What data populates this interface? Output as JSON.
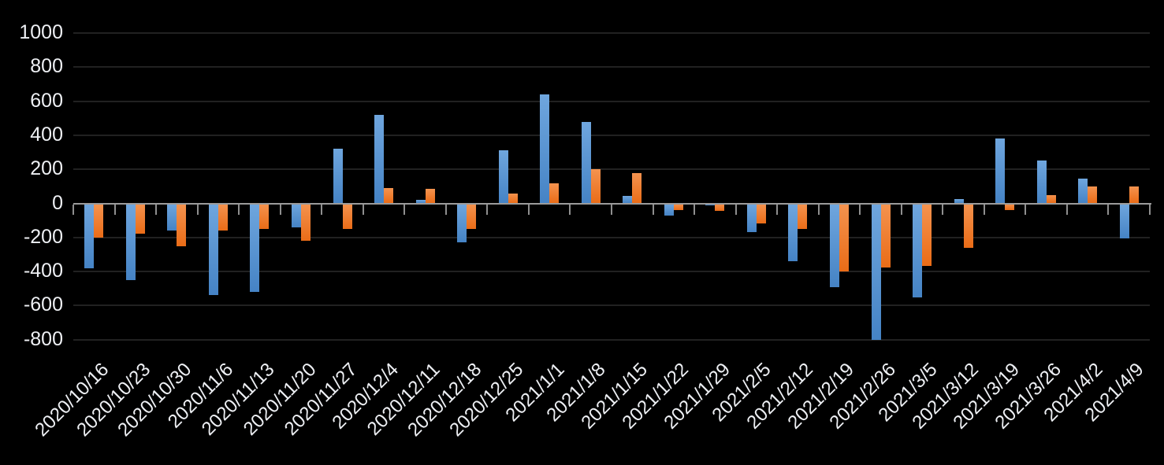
{
  "chart_data": {
    "type": "bar",
    "title": "",
    "legend": "none",
    "grid": true,
    "background": "#000000",
    "categories": [
      "2020/10/16",
      "2020/10/23",
      "2020/10/30",
      "2020/11/6",
      "2020/11/13",
      "2020/11/20",
      "2020/11/27",
      "2020/12/4",
      "2020/12/11",
      "2020/12/18",
      "2020/12/25",
      "2021/1/1",
      "2021/1/8",
      "2021/1/15",
      "2021/1/22",
      "2021/1/29",
      "2021/2/5",
      "2021/2/12",
      "2021/2/19",
      "2021/2/26",
      "2021/3/5",
      "2021/3/12",
      "2021/3/19",
      "2021/3/26",
      "2021/4/2",
      "2021/4/9"
    ],
    "series": [
      {
        "name": "blue",
        "color": "#5b9bd5",
        "values": [
          -380,
          -450,
          -160,
          -540,
          -520,
          -140,
          320,
          520,
          20,
          -230,
          310,
          640,
          480,
          45,
          -70,
          -10,
          -170,
          -340,
          -490,
          -800,
          -550,
          25,
          380,
          250,
          145,
          -205
        ]
      },
      {
        "name": "orange",
        "color": "#ed7d31",
        "values": [
          -200,
          -180,
          -250,
          -160,
          -150,
          -220,
          -150,
          90,
          85,
          -150,
          60,
          120,
          200,
          180,
          -40,
          -45,
          -120,
          -150,
          -400,
          -375,
          -365,
          -260,
          -40,
          50,
          100,
          100
        ]
      }
    ],
    "y_axis": {
      "min": -800,
      "max": 1000,
      "step": 200,
      "tick_labels": [
        "1000",
        "800",
        "600",
        "400",
        "200",
        "0",
        "-200",
        "-400",
        "-600",
        "-800"
      ]
    },
    "x_axis": {
      "label_rotation_deg": 45
    }
  }
}
